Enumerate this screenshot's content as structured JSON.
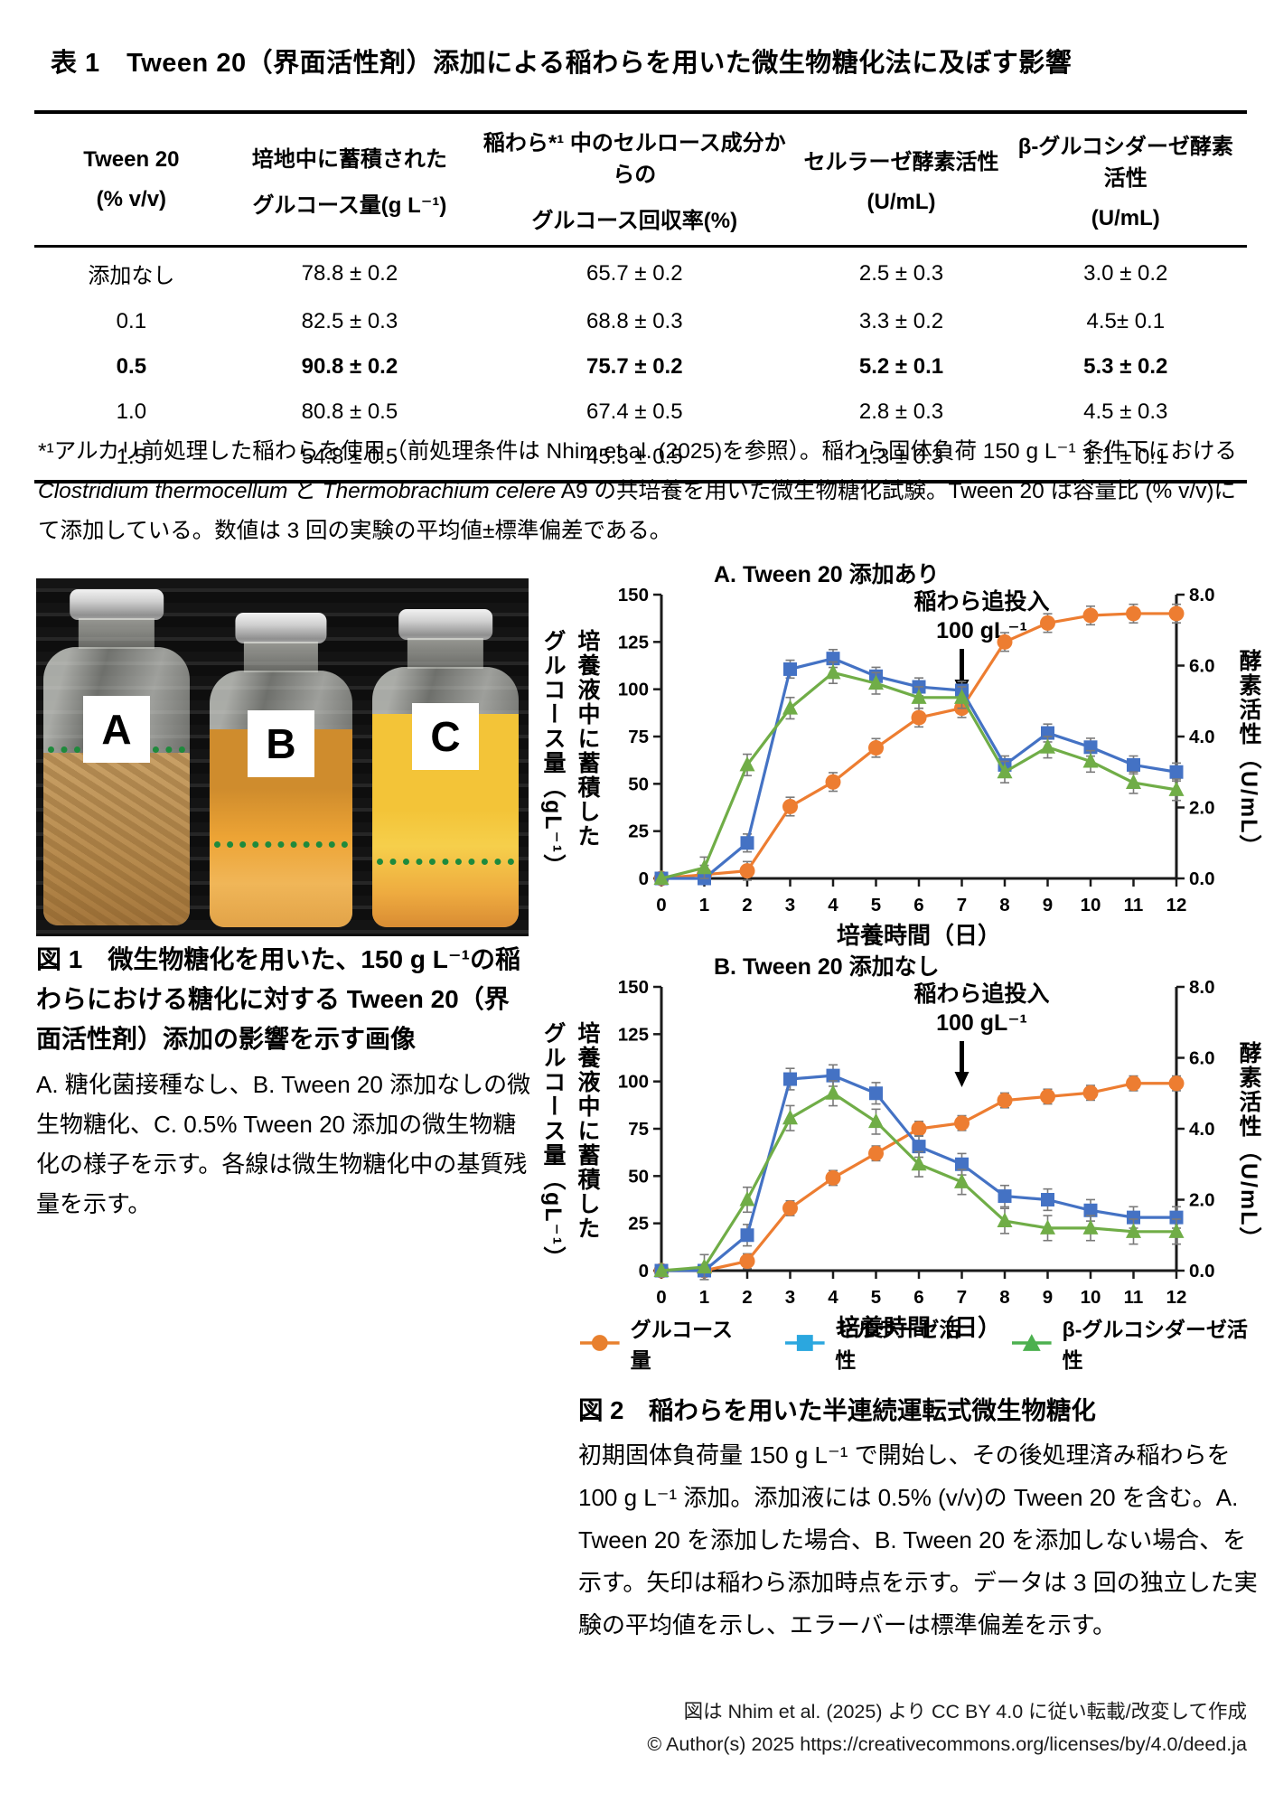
{
  "page": {
    "table_title": "表 1　Tween 20（界面活性剤）添加による稲わらを用いた微生物糖化法に及ぼす影響",
    "table": {
      "headers": [
        {
          "line1": "Tween 20",
          "line2": "(% v/v)"
        },
        {
          "line1": "培地中に蓄積された",
          "line2": "グルコース量(g L⁻¹)"
        },
        {
          "line1": "稲わら*¹ 中のセルロース成分からの",
          "line2": "グルコース回収率(%)"
        },
        {
          "line1": "セルラーゼ酵素活性",
          "line2": "(U/mL)"
        },
        {
          "line1": "β-グルコシダーゼ酵素活性",
          "line2": "(U/mL)"
        }
      ],
      "rows": [
        {
          "bold": false,
          "cells": [
            "添加なし",
            "78.8 ± 0.2",
            "65.7 ± 0.2",
            "2.5 ± 0.3",
            "3.0 ± 0.2"
          ]
        },
        {
          "bold": false,
          "cells": [
            "0.1",
            "82.5 ± 0.3",
            "68.8 ± 0.3",
            "3.3 ± 0.2",
            "4.5± 0.1"
          ]
        },
        {
          "bold": true,
          "cells": [
            "0.5",
            "90.8 ± 0.2",
            "75.7 ± 0.2",
            "5.2 ± 0.1",
            "5.3 ± 0.2"
          ]
        },
        {
          "bold": false,
          "cells": [
            "1.0",
            "80.8 ± 0.5",
            "67.4 ± 0.5",
            "2.8 ± 0.3",
            "4.5 ± 0.3"
          ]
        },
        {
          "bold": false,
          "cells": [
            "1.5",
            "54.8 ± 0.5",
            "45.3 ± 0.5",
            "1.3 ± 0.3",
            "1.1 ± 0.1"
          ]
        }
      ]
    },
    "footnote_parts": [
      {
        "style": "normal",
        "text": "*¹アルカリ前処理した稲わらを使用（前処理条件は Nhim et al. (2025)を参照）。稲わら固体負荷 150 g L⁻¹ 条件下における "
      },
      {
        "style": "italic",
        "text": "Clostridium thermocellum"
      },
      {
        "style": "normal",
        "text": " と "
      },
      {
        "style": "italic",
        "text": "Thermobrachium celere"
      },
      {
        "style": "normal",
        "text": " A9 の共培養を用いた微生物糖化試験。Tween 20 は容量比 (% v/v)にて添加している。数値は 3 回の実験の平均値±標準偏差である。"
      }
    ],
    "photo": {
      "bottle_labels": [
        "A",
        "B",
        "C"
      ]
    },
    "fig1": {
      "title": "図 1　微生物糖化を用いた、150 g L⁻¹の稲わらにおける糖化に対する Tween 20（界面活性剤）添加の影響を示す画像",
      "body": "A.  糖化菌接種なし、B. Tween 20 添加なしの微生物糖化、C. 0.5% Tween 20 添加の微生物糖化の様子を示す。各線は微生物糖化中の基質残量を示す。"
    },
    "fig2": {
      "title": "図 2　稲わらを用いた半連続運転式微生物糖化",
      "body": "初期固体負荷量 150 g L⁻¹ で開始し、その後処理済み稲わらを 100 g L⁻¹ 添加。添加液には 0.5% (v/v)の Tween 20 を含む。A. Tween 20 を添加した場合、B. Tween 20 を添加しない場合、を示す。矢印は稲わら添加時点を示す。データは 3 回の独立した実験の平均値を示し、エラーバーは標準偏差を示す。"
    },
    "legend": [
      {
        "label": "グルコース量",
        "marker": "circle",
        "color": "#E8802E"
      },
      {
        "label": "セルラーゼ活性",
        "marker": "square",
        "color": "#2BA7DF"
      },
      {
        "label": "β-グルコシダーゼ活性",
        "marker": "triangle",
        "color": "#4CB04F"
      }
    ],
    "attribution": {
      "line1": "図は Nhim et al. (2025) より CC BY 4.0 に従い転載/改変して作成",
      "line2": "© Author(s) 2025 https://creativecommons.org/licenses/by/4.0/deed.ja"
    }
  },
  "chart_data": [
    {
      "panel": "A",
      "type": "line",
      "title": "A. Tween 20  添加あり",
      "x": [
        0,
        1,
        2,
        3,
        4,
        5,
        6,
        7,
        8,
        9,
        10,
        11,
        12
      ],
      "xlabel": "培養時間（日）",
      "ylabel_left": [
        "培養液中に蓄積した",
        "グルコース量（gL⁻¹）"
      ],
      "ylabel_right": "酵素活性（U/mL）",
      "ylim_left": [
        0,
        150
      ],
      "yticks_left": [
        0,
        25,
        50,
        75,
        100,
        125,
        150
      ],
      "ylim_right": [
        0,
        8
      ],
      "yticks_right": [
        0,
        2,
        4,
        6,
        8
      ],
      "yticks_right_labels": [
        "0.0",
        "2.0",
        "4.0",
        "6.0",
        "8.0"
      ],
      "annotation": {
        "line1": "稲わら追投入",
        "line2": "100 gL⁻¹",
        "arrow_x": 7
      },
      "series": [
        {
          "name": "グルコース量",
          "axis": "left",
          "marker": "circle",
          "color": "#ED7D31",
          "err": 3,
          "values": [
            0,
            2,
            4,
            38,
            51,
            69,
            85,
            90,
            125,
            135,
            139,
            140,
            140
          ]
        },
        {
          "name": "セルラーゼ活性",
          "axis": "right",
          "marker": "square",
          "color": "#4472C4",
          "err": 0.15,
          "values": [
            0,
            0,
            1.0,
            5.9,
            6.2,
            5.7,
            5.4,
            5.3,
            3.2,
            4.1,
            3.7,
            3.2,
            3.0
          ]
        },
        {
          "name": "β-グルコシダーゼ活性",
          "axis": "right",
          "marker": "triangle",
          "color": "#70AD47",
          "err": 0.2,
          "values": [
            0,
            0.3,
            3.2,
            4.8,
            5.8,
            5.5,
            5.1,
            5.1,
            3.0,
            3.7,
            3.3,
            2.7,
            2.5
          ]
        }
      ]
    },
    {
      "panel": "B",
      "type": "line",
      "title": "B. Tween 20  添加なし",
      "x": [
        0,
        1,
        2,
        3,
        4,
        5,
        6,
        7,
        8,
        9,
        10,
        11,
        12
      ],
      "xlabel": "培養時間（日）",
      "ylabel_left": [
        "培養液中に蓄積した",
        "グルコース量（gL⁻¹）"
      ],
      "ylabel_right": "酵素活性（U/mL）",
      "ylim_left": [
        0,
        150
      ],
      "yticks_left": [
        0,
        25,
        50,
        75,
        100,
        125,
        150
      ],
      "ylim_right": [
        0,
        8
      ],
      "yticks_right": [
        0,
        2,
        4,
        6,
        8
      ],
      "yticks_right_labels": [
        "0.0",
        "2.0",
        "4.0",
        "6.0",
        "8.0"
      ],
      "annotation": {
        "line1": "稲わら追投入",
        "line2": "100 gL⁻¹",
        "arrow_x": 7
      },
      "series": [
        {
          "name": "グルコース量",
          "axis": "left",
          "marker": "circle",
          "color": "#ED7D31",
          "err": 2,
          "values": [
            0,
            0,
            5,
            33,
            49,
            62,
            75,
            78,
            90,
            92,
            94,
            99,
            99
          ]
        },
        {
          "name": "セルラーゼ活性",
          "axis": "right",
          "marker": "square",
          "color": "#4472C4",
          "err": 0.2,
          "values": [
            0,
            0,
            1.0,
            5.4,
            5.5,
            5.0,
            3.5,
            3.0,
            2.1,
            2.0,
            1.7,
            1.5,
            1.5
          ]
        },
        {
          "name": "β-グルコシダーゼ活性",
          "axis": "right",
          "marker": "triangle",
          "color": "#70AD47",
          "err": 0.25,
          "values": [
            0,
            0.1,
            2.0,
            4.3,
            5.0,
            4.2,
            3.0,
            2.5,
            1.4,
            1.2,
            1.2,
            1.1,
            1.1
          ]
        }
      ]
    }
  ]
}
